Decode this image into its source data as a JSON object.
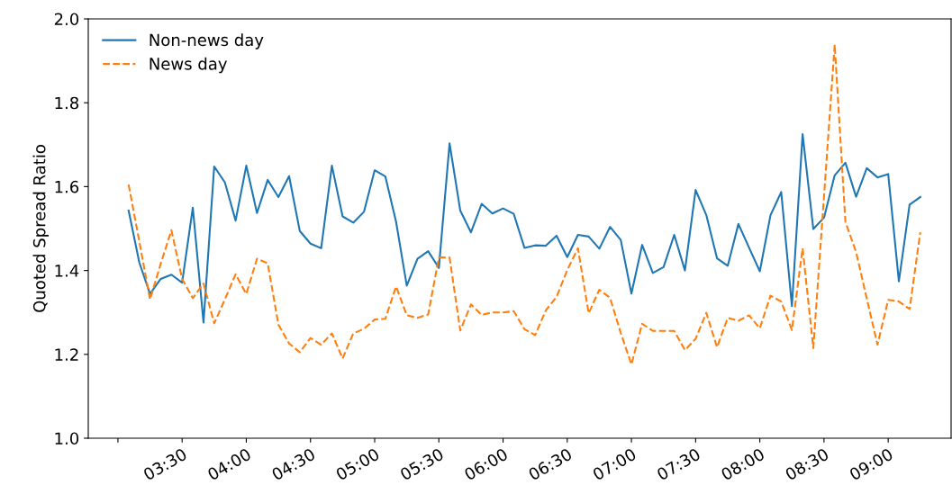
{
  "chart_data": {
    "type": "line",
    "ylabel": "Quoted Spread Ratio",
    "x": [
      3.0833,
      3.1667,
      3.25,
      3.3333,
      3.4167,
      3.5,
      3.5833,
      3.6667,
      3.75,
      3.8333,
      3.9167,
      4.0,
      4.0833,
      4.1667,
      4.25,
      4.3333,
      4.4167,
      4.5,
      4.5833,
      4.6667,
      4.75,
      4.8333,
      4.9167,
      5.0,
      5.0833,
      5.1667,
      5.25,
      5.3333,
      5.4167,
      5.5,
      5.5833,
      5.6667,
      5.75,
      5.8333,
      5.9167,
      6.0,
      6.0833,
      6.1667,
      6.25,
      6.3333,
      6.4167,
      6.5,
      6.5833,
      6.6667,
      6.75,
      6.8333,
      6.9167,
      7.0,
      7.0833,
      7.1667,
      7.25,
      7.3333,
      7.4167,
      7.5,
      7.5833,
      7.6667,
      7.75,
      7.8333,
      7.9167,
      8.0,
      8.0833,
      8.1667,
      8.25,
      8.3333,
      8.4167,
      8.5,
      8.5833,
      8.6667,
      8.75,
      8.8333,
      8.9167,
      9.0,
      9.0833,
      9.1667,
      9.25
    ],
    "series": [
      {
        "name": "Non-news day",
        "color": "#1f77b4",
        "line_style": "solid",
        "values": [
          1.543,
          1.419,
          1.344,
          1.38,
          1.39,
          1.371,
          1.55,
          1.276,
          1.648,
          1.61,
          1.519,
          1.65,
          1.537,
          1.616,
          1.575,
          1.625,
          1.494,
          1.464,
          1.453,
          1.65,
          1.529,
          1.514,
          1.54,
          1.639,
          1.624,
          1.516,
          1.364,
          1.428,
          1.446,
          1.406,
          1.703,
          1.543,
          1.491,
          1.559,
          1.536,
          1.548,
          1.535,
          1.454,
          1.46,
          1.459,
          1.483,
          1.432,
          1.485,
          1.481,
          1.452,
          1.504,
          1.473,
          1.345,
          1.461,
          1.394,
          1.408,
          1.485,
          1.4,
          1.592,
          1.532,
          1.429,
          1.411,
          1.511,
          1.454,
          1.398,
          1.532,
          1.587,
          1.315,
          1.725,
          1.499,
          1.526,
          1.627,
          1.657,
          1.576,
          1.644,
          1.622,
          1.63,
          1.374,
          1.557,
          1.575
        ]
      },
      {
        "name": "News day",
        "color": "#ff7f0e",
        "line_style": "dashed",
        "values": [
          1.605,
          1.469,
          1.331,
          1.416,
          1.496,
          1.38,
          1.334,
          1.369,
          1.274,
          1.331,
          1.391,
          1.344,
          1.428,
          1.417,
          1.271,
          1.226,
          1.205,
          1.239,
          1.223,
          1.25,
          1.19,
          1.25,
          1.261,
          1.283,
          1.285,
          1.362,
          1.293,
          1.287,
          1.295,
          1.431,
          1.431,
          1.257,
          1.319,
          1.294,
          1.3,
          1.3,
          1.303,
          1.26,
          1.246,
          1.305,
          1.337,
          1.401,
          1.453,
          1.298,
          1.354,
          1.335,
          1.251,
          1.176,
          1.273,
          1.256,
          1.256,
          1.256,
          1.21,
          1.237,
          1.299,
          1.217,
          1.287,
          1.28,
          1.293,
          1.262,
          1.34,
          1.326,
          1.258,
          1.453,
          1.215,
          1.577,
          1.939,
          1.516,
          1.444,
          1.333,
          1.223,
          1.33,
          1.326,
          1.308,
          1.491
        ]
      }
    ],
    "xlim": [
      2.769,
      9.49
    ],
    "ylim": [
      1.0,
      2.0
    ],
    "xticks": [
      {
        "value": 3.0,
        "label": null
      },
      {
        "value": 3.5,
        "label": "03:30"
      },
      {
        "value": 4.0,
        "label": "04:00"
      },
      {
        "value": 4.5,
        "label": "04:30"
      },
      {
        "value": 5.0,
        "label": "05:00"
      },
      {
        "value": 5.5,
        "label": "05:30"
      },
      {
        "value": 6.0,
        "label": "06:00"
      },
      {
        "value": 6.5,
        "label": "06:30"
      },
      {
        "value": 7.0,
        "label": "07:00"
      },
      {
        "value": 7.5,
        "label": "07:30"
      },
      {
        "value": 8.0,
        "label": "08:00"
      },
      {
        "value": 8.5,
        "label": "08:30"
      },
      {
        "value": 9.0,
        "label": "09:00"
      }
    ],
    "yticks": [
      {
        "value": 1.0,
        "label": "1.0"
      },
      {
        "value": 1.2,
        "label": "1.2"
      },
      {
        "value": 1.4,
        "label": "1.4"
      },
      {
        "value": 1.6,
        "label": "1.6"
      },
      {
        "value": 1.8,
        "label": "1.8"
      },
      {
        "value": 2.0,
        "label": "2.0"
      }
    ],
    "legend": "top left",
    "grid": false,
    "marker": "none"
  }
}
